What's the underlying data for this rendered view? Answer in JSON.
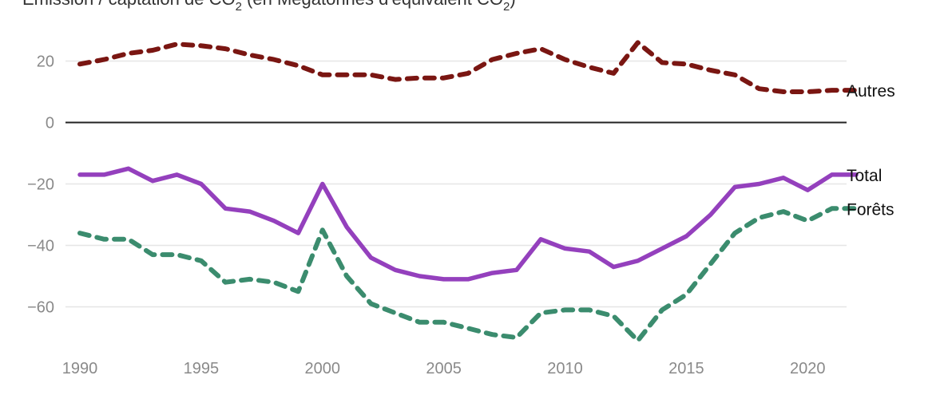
{
  "chart_data": {
    "type": "line",
    "title_prefix": "Émission / captation de CO",
    "title_sub1": "2",
    "title_middle": " (en Mégatonnes d'équivalent CO",
    "title_sub2": "2",
    "title_suffix": ")",
    "x": [
      1990,
      1991,
      1992,
      1993,
      1994,
      1995,
      1996,
      1997,
      1998,
      1999,
      2000,
      2001,
      2002,
      2003,
      2004,
      2005,
      2006,
      2007,
      2008,
      2009,
      2010,
      2011,
      2012,
      2013,
      2014,
      2015,
      2016,
      2017,
      2018,
      2019,
      2020,
      2021,
      2022
    ],
    "xticks": [
      1990,
      1995,
      2000,
      2005,
      2010,
      2015,
      2020
    ],
    "yticks": [
      20,
      0,
      -20,
      -40,
      -60
    ],
    "ytick_labels": [
      "20",
      "0",
      "−20",
      "−40",
      "−60"
    ],
    "ylim": [
      -72,
      32
    ],
    "xlim": [
      1990,
      2022
    ],
    "series": [
      {
        "name": "Autres",
        "color": "#7a1612",
        "style": "dashed",
        "values": [
          19,
          20.5,
          22.5,
          23.5,
          25.5,
          25,
          24,
          22,
          20.5,
          18.5,
          15.5,
          15.5,
          15.5,
          14,
          14.5,
          14.5,
          16,
          20.5,
          22.5,
          24,
          20.5,
          18,
          16,
          26,
          19.5,
          19,
          17,
          15.5,
          11,
          10,
          10,
          10.5,
          10.5
        ]
      },
      {
        "name": "Total",
        "color": "#9440bd",
        "style": "solid",
        "values": [
          -17,
          -17,
          -15,
          -19,
          -17,
          -20,
          -28,
          -29,
          -32,
          -36,
          -20,
          -34,
          -44,
          -48,
          -50,
          -51,
          -51,
          -49,
          -48,
          -38,
          -41,
          -42,
          -47,
          -45,
          -41,
          -37,
          -30,
          -21,
          -20,
          -18,
          -22,
          -17,
          -17
        ]
      },
      {
        "name": "Forêts",
        "color": "#3b8c6e",
        "style": "dashed",
        "values": [
          -36,
          -38,
          -38,
          -43,
          -43,
          -45,
          -52,
          -51,
          -52,
          -55,
          -35,
          -50,
          -59,
          -62,
          -65,
          -65,
          -67,
          -69,
          -70,
          -62,
          -61,
          -61,
          -63,
          -71,
          -61,
          -56,
          -46,
          -36,
          -31,
          -29,
          -32,
          -28,
          -28
        ]
      }
    ]
  }
}
